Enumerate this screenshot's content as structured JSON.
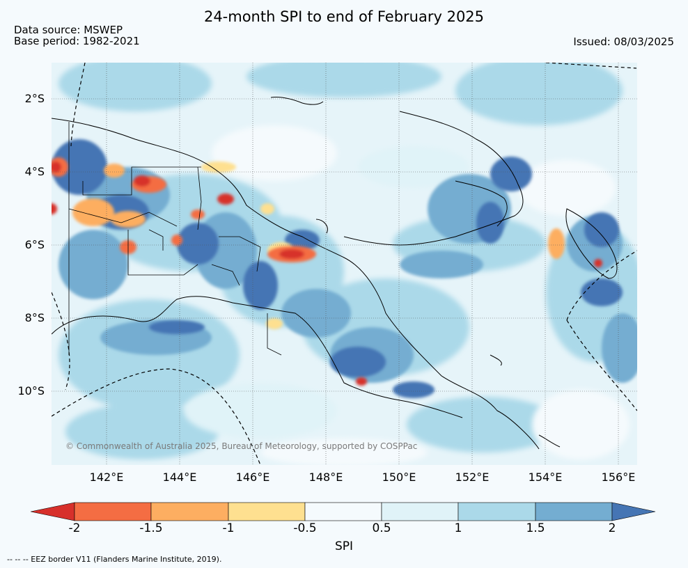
{
  "header": {
    "title": "24-month SPI to end of February 2025",
    "data_source": "Data source: MSWEP",
    "base_period": "Base period: 1982-2021",
    "issued": "Issued: 08/03/2025"
  },
  "map": {
    "copyright": "© Commonwealth of Australia 2025, Bureau of Meteorology, supported by COSPPac",
    "lat_labels": [
      "2°S",
      "4°S",
      "6°S",
      "8°S",
      "10°S"
    ],
    "lon_labels": [
      "142°E",
      "144°E",
      "146°E",
      "148°E",
      "150°E",
      "152°E",
      "154°E",
      "156°E"
    ]
  },
  "legend": {
    "label": "SPI",
    "ticks": [
      "-2",
      "-1.5",
      "-1",
      "-0.5",
      "0.5",
      "1",
      "1.5",
      "2"
    ],
    "colors": {
      "below_-2": "#d7302b",
      "-2_to_-1.5": "#f46d43",
      "-1.5_to_-1": "#fdae61",
      "-1_to_-0.5": "#fee090",
      "-0.5_to_0.5": "#f5fafd",
      "0.5_to_1": "#e0f3f8",
      "1_to_1.5": "#abd9e9",
      "1.5_to_2": "#74add1",
      "above_2": "#4575b4"
    }
  },
  "footnote": "-- -- -- EEZ border V11 (Flanders Marine Institute, 2019)."
}
